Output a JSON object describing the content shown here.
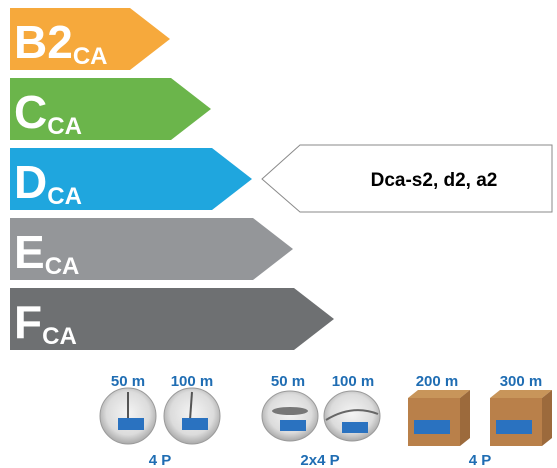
{
  "classes": [
    {
      "letter": "B2",
      "subscript": "CA"
    },
    {
      "letter": "C",
      "subscript": "CA"
    },
    {
      "letter": "D",
      "subscript": "CA"
    },
    {
      "letter": "E",
      "subscript": "CA"
    },
    {
      "letter": "F",
      "subscript": "CA"
    }
  ],
  "pointer": {
    "label": "Dca-s2, d2, a2"
  },
  "products": [
    {
      "items": [
        "50 m",
        "100 m"
      ],
      "label": "4 P"
    },
    {
      "items": [
        "50 m",
        "100 m"
      ],
      "label": "2x4 P"
    },
    {
      "items": [
        "200 m",
        "300 m"
      ],
      "label": "4 P"
    }
  ]
}
